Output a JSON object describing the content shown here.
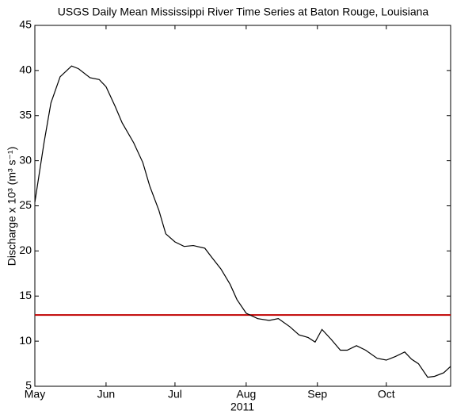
{
  "chart_data": {
    "type": "line",
    "title": "USGS Daily Mean Mississippi River Time Series at Baton Rouge, Louisiana",
    "x_label": "2011",
    "y_label": "Discharge x 10³ (m³ s⁻¹)",
    "x": [
      0,
      4,
      7,
      11,
      16,
      19,
      24,
      28,
      31,
      35,
      38,
      43,
      47,
      50,
      54,
      57,
      61,
      65,
      69,
      74,
      77,
      81,
      85,
      88,
      92,
      97,
      102,
      106,
      111,
      115,
      119,
      122,
      125,
      129,
      133,
      136,
      140,
      144,
      149,
      153,
      157,
      161,
      164,
      167,
      171,
      174,
      178,
      181
    ],
    "series": [
      {
        "color": "#000000",
        "values": [
          25.4,
          32,
          36.4,
          39.3,
          40.5,
          40.2,
          39.2,
          39,
          38.2,
          36,
          34.2,
          32,
          29.8,
          27.2,
          24.5,
          21.9,
          21,
          20.5,
          20.6,
          20.3,
          19.3,
          18,
          16.3,
          14.6,
          13.1,
          12.5,
          12.3,
          12.5,
          11.6,
          10.7,
          10.4,
          9.9,
          11.3,
          10.2,
          9,
          9,
          9.5,
          9,
          8.1,
          7.9,
          8.3,
          8.8,
          8,
          7.5,
          6,
          6.1,
          6.5,
          7.2
        ]
      }
    ],
    "hline": {
      "value": 12.9,
      "color": "#c00000"
    },
    "xlim": [
      0,
      181
    ],
    "xticks": [
      {
        "value": 0,
        "label": "May"
      },
      {
        "value": 31,
        "label": "Jun"
      },
      {
        "value": 61,
        "label": "Jul"
      },
      {
        "value": 92,
        "label": "Aug"
      },
      {
        "value": 123,
        "label": "Sep"
      },
      {
        "value": 153,
        "label": "Oct"
      }
    ],
    "ylim": [
      5,
      45
    ],
    "yticks": [
      5,
      10,
      15,
      20,
      25,
      30,
      35,
      40,
      45
    ],
    "grid": false
  }
}
